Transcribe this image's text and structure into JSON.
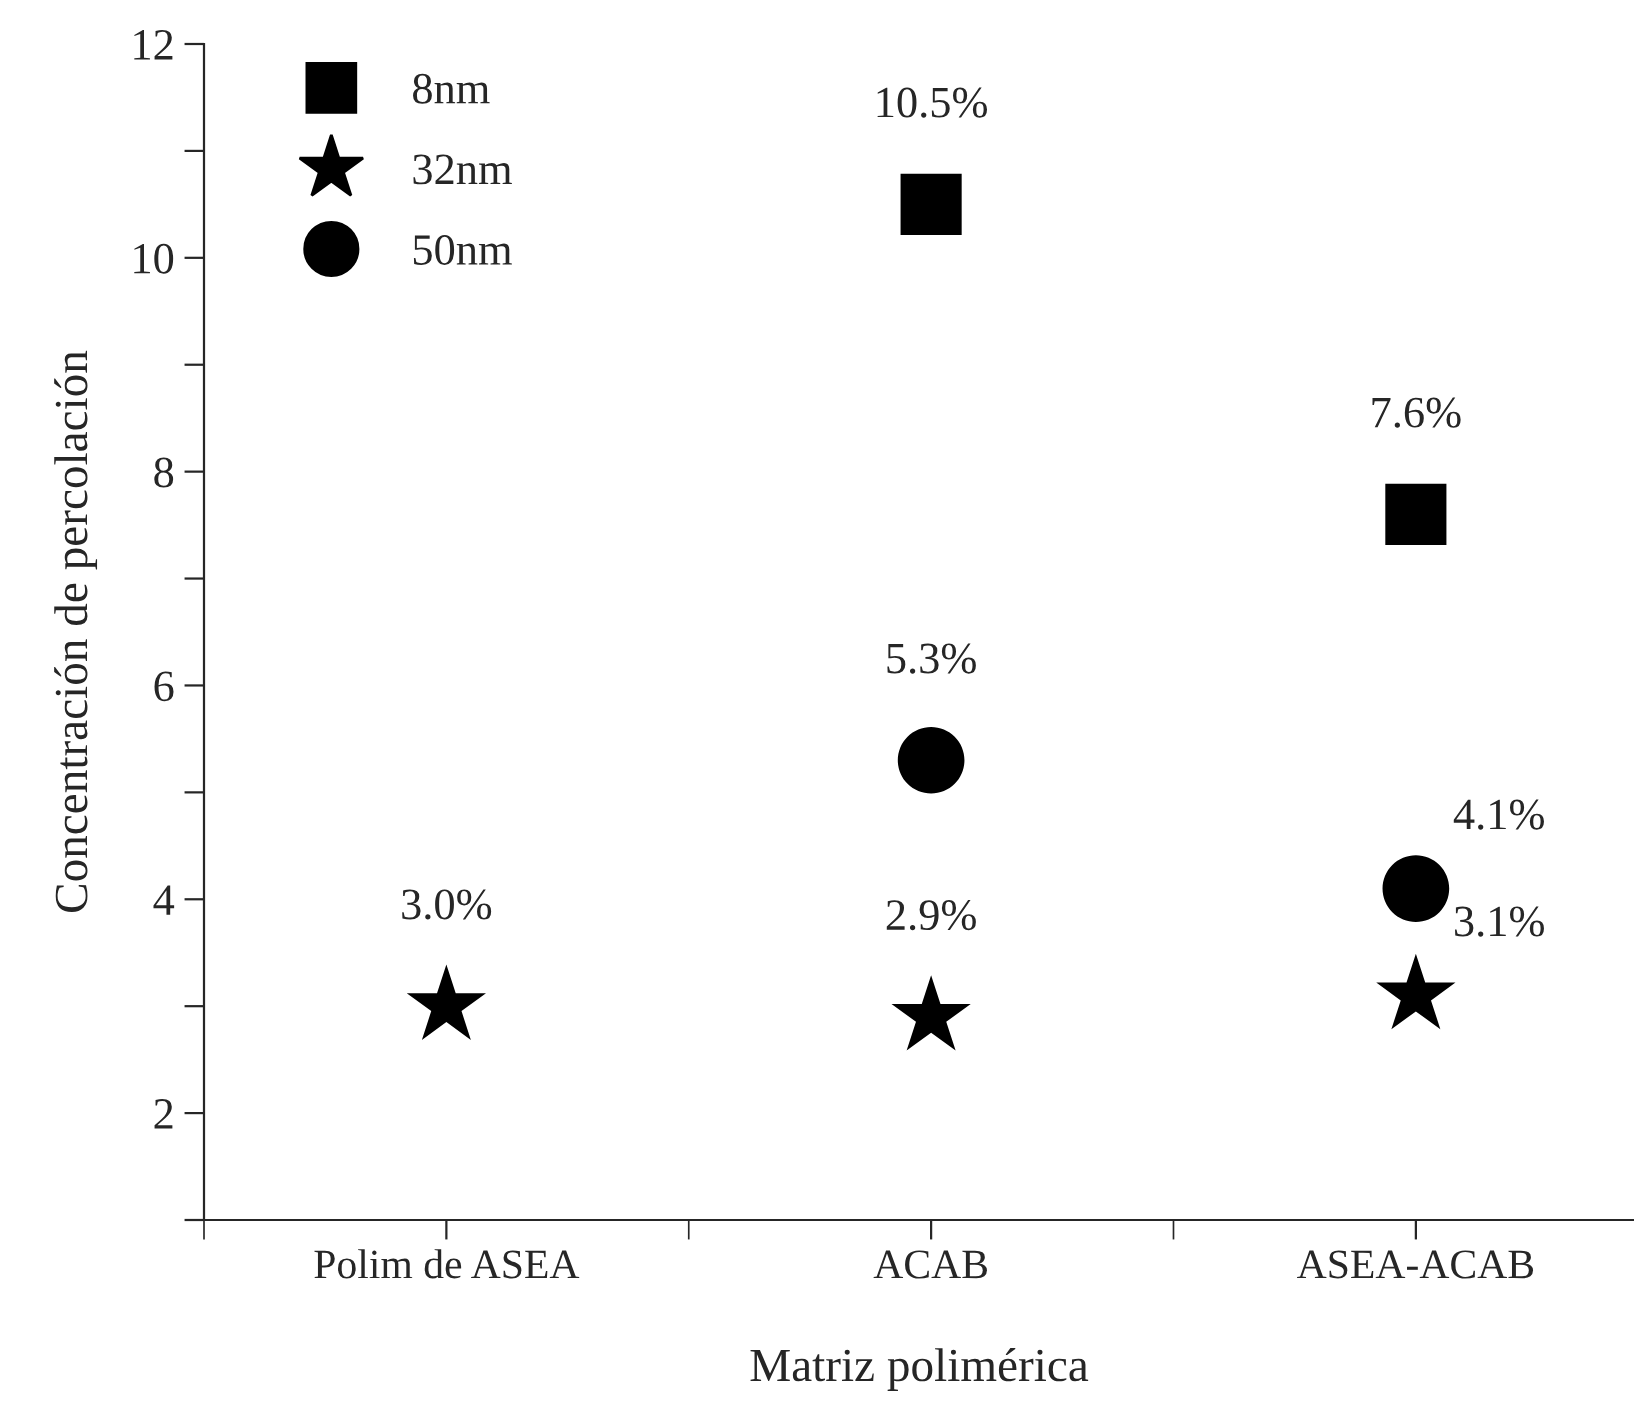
{
  "chart_data": {
    "type": "scatter",
    "xlabel": "Matriz polimérica",
    "ylabel": "Concentración de percolación",
    "categories": [
      "Polim de ASEA",
      "ACAB",
      "ASEA-ACAB"
    ],
    "ylim": [
      1,
      12
    ],
    "yticks": [
      {
        "value": 1,
        "label": null
      },
      2,
      {
        "value": 3,
        "label": null
      },
      4,
      {
        "value": 5,
        "label": null
      },
      6,
      {
        "value": 7,
        "label": null
      },
      8,
      {
        "value": 9,
        "label": null
      },
      10,
      {
        "value": 11,
        "label": null
      },
      12
    ],
    "legend": "top left",
    "grid": false,
    "series": [
      {
        "name": "8nm",
        "color": "#000000",
        "marker": "square",
        "values": [
          null,
          10.5,
          7.6
        ],
        "value_labels": [
          null,
          "10.5%",
          "7.6%"
        ]
      },
      {
        "name": "32nm",
        "color": "#000000",
        "marker": "star",
        "values": [
          3.0,
          2.9,
          3.1
        ],
        "value_labels": [
          "3.0%",
          "2.9%",
          "3.1%"
        ]
      },
      {
        "name": "50nm",
        "color": "#000000",
        "marker": "circle",
        "values": [
          null,
          5.3,
          4.1
        ],
        "value_labels": [
          null,
          "5.3%",
          "4.1%"
        ]
      }
    ]
  }
}
